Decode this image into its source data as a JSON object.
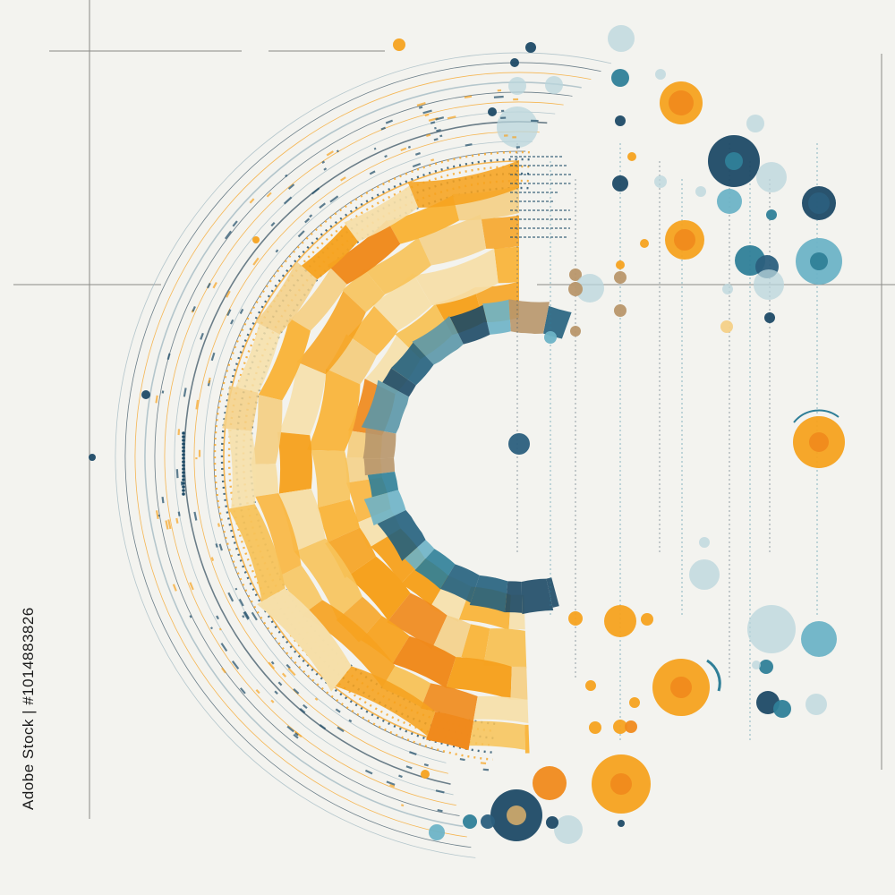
{
  "watermark": {
    "side_text": "Adobe Stock | #1014883826",
    "tile_text": "Adobe Stock"
  },
  "palette": {
    "background": "#f3f3ef",
    "orange": "#f6a21f",
    "orange_light": "#f7c35a",
    "cream": "#f6dfa8",
    "dark_orange": "#f08a1c",
    "navy": "#1d4a66",
    "teal": "#2f7f98",
    "light_teal": "#6db3c6",
    "pale_blue": "#b9d6dc",
    "tan": "#b8966a",
    "line": "#3c5565"
  }
}
